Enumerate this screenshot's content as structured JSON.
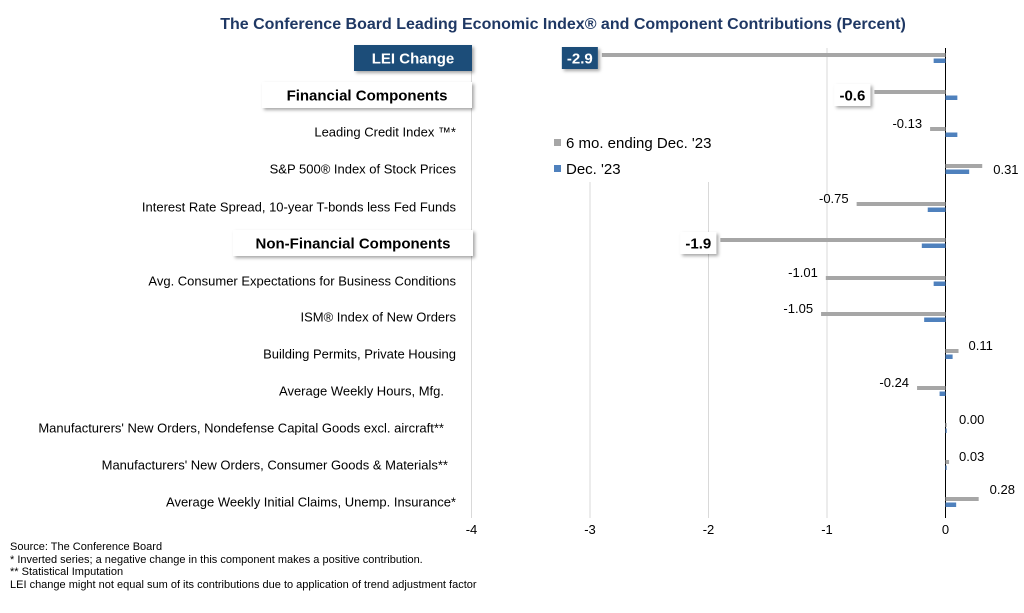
{
  "chart_data": {
    "type": "bar",
    "orientation": "horizontal",
    "title": "The Conference Board Leading Economic Index® and Component Contributions (Percent)",
    "xlim": [
      -4,
      0.31
    ],
    "xticks": [
      "-4",
      "-3",
      "-2",
      "-1",
      "0"
    ],
    "grid": true,
    "legend_position": "upper-left of plot area",
    "categories": [
      "LEI Change",
      "Financial Components",
      "Leading Credit Index ™*",
      "S&P 500® Index of Stock Prices",
      "Interest Rate Spread, 10-year T-bonds less Fed Funds",
      "Non-Financial Components",
      "Avg. Consumer Expectations for Business Conditions",
      "ISM® Index of New Orders",
      "Building Permits, Private Housing",
      "Average Weekly Hours, Mfg.",
      "Manufacturers' New Orders, Nondefense Capital Goods excl. aircraft**",
      "Manufacturers' New Orders, Consumer Goods & Materials**",
      "Average Weekly Initial Claims, Unemp. Insurance*"
    ],
    "highlighted": [
      "boxed-dark",
      "boxed",
      "plain",
      "plain",
      "plain",
      "boxed",
      "plain",
      "plain",
      "plain",
      "plain",
      "plain",
      "plain",
      "plain"
    ],
    "series": [
      {
        "name": "6 mo. ending Dec. '23",
        "color": "#a6a6a6",
        "values": [
          -2.9,
          -0.6,
          -0.13,
          0.31,
          -0.75,
          -1.9,
          -1.01,
          -1.05,
          0.11,
          -0.24,
          0.0,
          0.03,
          0.28
        ],
        "labels": [
          "-2.9",
          "-0.6",
          "-0.13",
          "0.31",
          "-0.75",
          "-1.9",
          "-1.01",
          "-1.05",
          "0.11",
          "-0.24",
          "0.00",
          "0.03",
          "0.28"
        ]
      },
      {
        "name": "Dec. '23",
        "color": "#4f81bd",
        "values": [
          -0.1,
          0.1,
          0.1,
          0.2,
          -0.15,
          -0.2,
          -0.1,
          -0.18,
          0.06,
          -0.05,
          0.0,
          0.01,
          0.09
        ]
      }
    ]
  },
  "footnotes": [
    "Source: The Conference Board",
    "* Inverted series; a negative change in this component makes a positive contribution.",
    "** Statistical Imputation",
    "LEI change might not equal sum of its contributions due to application of trend adjustment factor"
  ]
}
